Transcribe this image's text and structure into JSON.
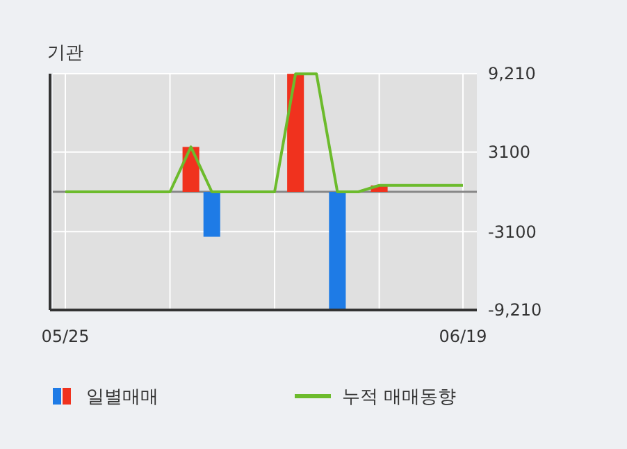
{
  "chart_data": {
    "type": "bar",
    "title": "기관",
    "categories": [
      "05/25",
      null,
      null,
      null,
      null,
      null,
      null,
      null,
      null,
      null,
      null,
      null,
      null,
      null,
      null,
      null,
      null,
      null,
      null,
      "06/19"
    ],
    "series": [
      {
        "name": "일별매매",
        "values": [
          0,
          0,
          0,
          0,
          0,
          0,
          3500,
          -3500,
          0,
          0,
          0,
          9200,
          0,
          -9200,
          0,
          500,
          0,
          0,
          0,
          0
        ],
        "colors": [
          "#f0321e",
          "#f0321e",
          "#f0321e",
          "#f0321e",
          "#f0321e",
          "#f0321e",
          "#f0321e",
          "#1e7be6",
          "#f0321e",
          "#f0321e",
          "#f0321e",
          "#f0321e",
          "#f0321e",
          "#1e7be6",
          "#f0321e",
          "#f0321e",
          "#f0321e",
          "#f0321e",
          "#f0321e",
          "#f0321e"
        ]
      },
      {
        "name": "누적 매매동향",
        "type": "line",
        "color": "#6cbb2c",
        "values": [
          0,
          0,
          0,
          0,
          0,
          0,
          3500,
          0,
          0,
          0,
          0,
          9200,
          9200,
          0,
          0,
          500,
          500,
          500,
          500,
          500
        ]
      }
    ],
    "ylim": [
      -9210,
      9210
    ],
    "yticks": [
      {
        "value": 9210,
        "label": "9,210"
      },
      3100,
      -3100,
      {
        "value": -9210,
        "label": "-9,210"
      }
    ],
    "grid": true,
    "legend": "bottom"
  }
}
